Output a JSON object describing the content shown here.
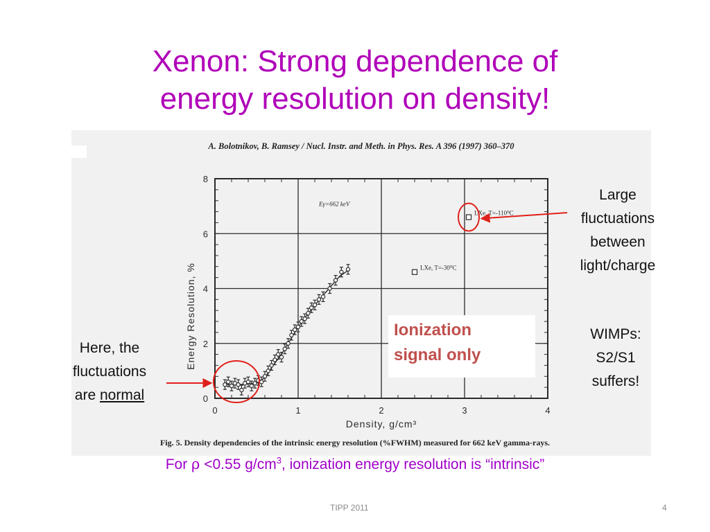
{
  "slide": {
    "title_line1": "Xenon: Strong dependence of",
    "title_line2": "energy resolution on density!",
    "footer_center": "TIPP 2011",
    "page_number": "4",
    "colors": {
      "title": "#b000b8",
      "note": "#a000c8",
      "ionization": "#c0504d",
      "arrow": "#e0201a"
    }
  },
  "figure": {
    "paper_header": "A. Bolotnikov, B. Ramsey / Nucl. Instr. and Meth. in Phys. Res. A 396 (1997) 360–370",
    "caption": "Fig. 5. Density dependencies of the intrinsic energy resolution (%FWHM) measured for 662 keV gamma-rays."
  },
  "annotations": {
    "large_fluct": [
      "Large",
      "fluctuations",
      "between",
      "light/charge"
    ],
    "here_line1": "Here, the",
    "here_line2": "fluctuations",
    "here_line3_prefix": "are ",
    "here_line3_underlined": "normal",
    "ionization_line1": "Ionization",
    "ionization_line2": "signal only",
    "wimps": [
      "WIMPs:",
      "S2/S1",
      "suffers!"
    ],
    "bottom_prefix": "For ",
    "bottom_rho": "ρ",
    "bottom_mid": " <0.55 g/cm",
    "bottom_sup": "3",
    "bottom_suffix": ", ionization energy resolution is “intrinsic”"
  },
  "chart_data": {
    "type": "scatter",
    "xlabel": "Density, g/cm³",
    "ylabel": "Energy Resolution, %",
    "xlim": [
      0,
      4
    ],
    "ylim": [
      0,
      8
    ],
    "xticks": [
      0,
      1,
      2,
      3,
      4
    ],
    "yticks": [
      0,
      2,
      4,
      6,
      8
    ],
    "grid": true,
    "in_plot_label": "Eγ=662 keV",
    "series": [
      {
        "marker": "circle-errorbar",
        "points": [
          [
            0.12,
            0.5
          ],
          [
            0.16,
            0.6
          ],
          [
            0.2,
            0.45
          ],
          [
            0.24,
            0.55
          ],
          [
            0.28,
            0.5
          ],
          [
            0.32,
            0.3
          ],
          [
            0.36,
            0.55
          ],
          [
            0.4,
            0.6
          ],
          [
            0.44,
            0.45
          ],
          [
            0.48,
            0.55
          ],
          [
            0.52,
            0.65
          ],
          [
            0.56,
            0.6
          ],
          [
            0.6,
            0.8
          ],
          [
            0.64,
            1.0
          ],
          [
            0.68,
            1.2
          ],
          [
            0.72,
            1.4
          ],
          [
            0.76,
            1.6
          ],
          [
            0.8,
            1.5
          ],
          [
            0.84,
            1.8
          ],
          [
            0.88,
            2.0
          ],
          [
            0.92,
            2.3
          ],
          [
            0.96,
            2.5
          ],
          [
            1.0,
            2.6
          ],
          [
            1.04,
            2.8
          ],
          [
            1.08,
            2.9
          ],
          [
            1.12,
            3.1
          ],
          [
            1.16,
            3.3
          ],
          [
            1.2,
            3.4
          ],
          [
            1.25,
            3.6
          ],
          [
            1.3,
            3.7
          ],
          [
            1.38,
            4.0
          ],
          [
            1.45,
            4.3
          ],
          [
            1.52,
            4.6
          ],
          [
            1.6,
            4.7
          ]
        ]
      }
    ],
    "fit_curve": [
      [
        0.1,
        0.5
      ],
      [
        0.3,
        0.5
      ],
      [
        0.5,
        0.55
      ],
      [
        0.6,
        0.75
      ],
      [
        0.7,
        1.2
      ],
      [
        0.8,
        1.6
      ],
      [
        0.9,
        2.1
      ],
      [
        1.0,
        2.6
      ],
      [
        1.1,
        3.0
      ],
      [
        1.2,
        3.4
      ],
      [
        1.3,
        3.75
      ],
      [
        1.4,
        4.1
      ],
      [
        1.5,
        4.45
      ],
      [
        1.62,
        4.7
      ]
    ],
    "lxe_points": [
      {
        "label": "LXe, T=-110⁰C",
        "x": 3.05,
        "y": 6.6
      },
      {
        "label": "LXe, T=-30⁰C",
        "x": 2.4,
        "y": 4.6
      }
    ]
  }
}
